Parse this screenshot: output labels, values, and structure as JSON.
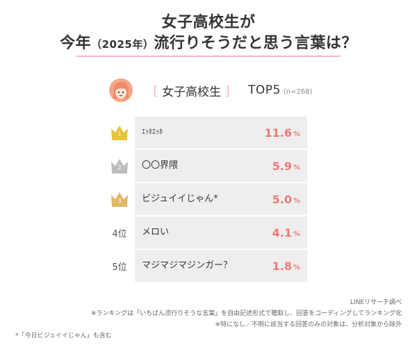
{
  "title": {
    "line1": "女子高校生が",
    "line2_pre": "今年",
    "line2_year": "（2025年）",
    "line2_post": "流行りそうだと思う言葉は？"
  },
  "header": {
    "bracket_open": "［",
    "category": "女子高校生",
    "bracket_close": "］",
    "top_label": "TOP5",
    "sample": "(n=268)"
  },
  "ranking": [
    {
      "rank": "1",
      "label": "ｴｯﾎｴｯﾎ",
      "value": "11.6",
      "unit": "%"
    },
    {
      "rank": "2",
      "label": "〇〇界隈",
      "value": "5.9",
      "unit": "%"
    },
    {
      "rank": "3",
      "label": "ビジュイイじゃん*",
      "value": "5.0",
      "unit": "%"
    },
    {
      "rank": "4位",
      "label": "メロい",
      "value": "4.1",
      "unit": "%"
    },
    {
      "rank": "5位",
      "label": "マジマジマジンガー？",
      "value": "1.8",
      "unit": "%"
    }
  ],
  "colors": {
    "gold": "#e8c33a",
    "silver": "#bdbdbd",
    "bronze": "#e2b866",
    "accent": "#ee7a77",
    "avatar": "#f4a787"
  },
  "notes": {
    "source": "LINEリサーチ調べ",
    "note1": "※ランキングは「いちばん流行りそうな言葉」を自由記述形式で聴取し、回答をコーディングしてランキング化",
    "note2": "※特になし／不明に該当する回答のみの対象は、分析対象から除外",
    "footnote": "*「今日ビジュイイじゃん」も含む"
  }
}
